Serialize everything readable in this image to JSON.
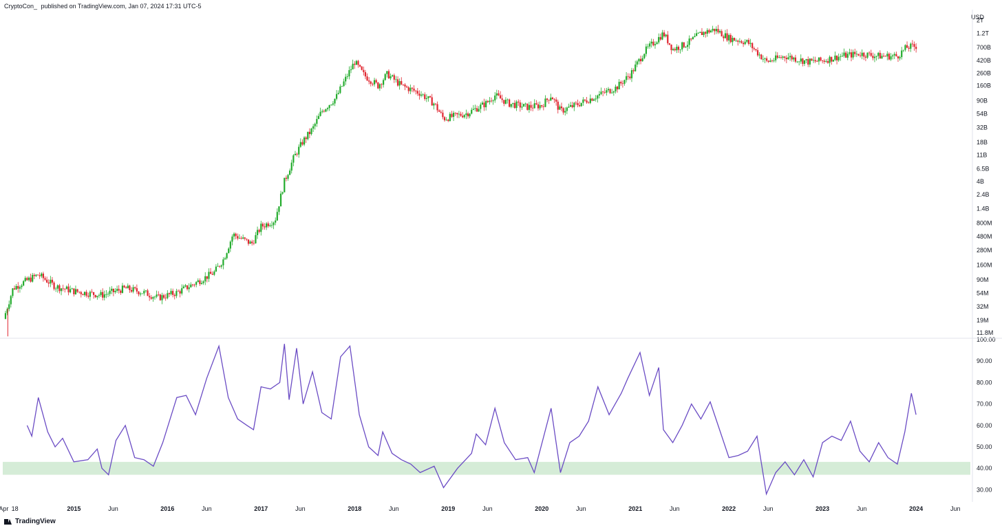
{
  "header": {
    "author": "CryptoCon_",
    "published_text": "published on TradingView.com, Jan 07, 2024 17:31 UTC-5"
  },
  "footer": {
    "brand": "TradingView",
    "logo_icon": "tradingview-logo-icon"
  },
  "colors": {
    "up": "#22ab2c",
    "down": "#e0252f",
    "rsi": "#6a4bc4",
    "band": "#d5ecd7",
    "grid": "#e0e3eb"
  },
  "chart_data": [
    {
      "type": "candlestick",
      "unit": "USD",
      "scale": "log",
      "y_tick_labels": [
        "2T",
        "1.2T",
        "700B",
        "420B",
        "260B",
        "160B",
        "90B",
        "54B",
        "32B",
        "18B",
        "11B",
        "6.5B",
        "4B",
        "2.4B",
        "1.4B",
        "800M",
        "480M",
        "280M",
        "160M",
        "90M",
        "54M",
        "32M",
        "19M",
        "11.8M"
      ],
      "y_tick_values": [
        2000000000000.0,
        1200000000000.0,
        700000000000.0,
        420000000000.0,
        260000000000.0,
        160000000000.0,
        90000000000.0,
        54000000000.0,
        32000000000.0,
        18000000000.0,
        11000000000.0,
        6500000000.0,
        4000000000.0,
        2400000000.0,
        1400000000.0,
        800000000.0,
        480000000.0,
        280000000.0,
        160000000.0,
        90000000.0,
        54000000.0,
        32000000.0,
        19000000.0,
        11800000.0
      ],
      "ylim": [
        10000000.0,
        2300000000000.0
      ],
      "x_ticks": [
        {
          "label": "Apr",
          "t": 2014.25,
          "bold": false
        },
        {
          "label": "18",
          "t": 2014.37,
          "bold": false
        },
        {
          "label": "2015",
          "t": 2015.0,
          "bold": true
        },
        {
          "label": "Jun",
          "t": 2015.42,
          "bold": false
        },
        {
          "label": "2016",
          "t": 2016.0,
          "bold": true
        },
        {
          "label": "Jun",
          "t": 2016.42,
          "bold": false
        },
        {
          "label": "2017",
          "t": 2017.0,
          "bold": true
        },
        {
          "label": "Jun",
          "t": 2017.42,
          "bold": false
        },
        {
          "label": "2018",
          "t": 2018.0,
          "bold": true
        },
        {
          "label": "Jun",
          "t": 2018.42,
          "bold": false
        },
        {
          "label": "2019",
          "t": 2019.0,
          "bold": true
        },
        {
          "label": "Jun",
          "t": 2019.42,
          "bold": false
        },
        {
          "label": "2020",
          "t": 2020.0,
          "bold": true
        },
        {
          "label": "Jun",
          "t": 2020.42,
          "bold": false
        },
        {
          "label": "2021",
          "t": 2021.0,
          "bold": true
        },
        {
          "label": "Jun",
          "t": 2021.42,
          "bold": false
        },
        {
          "label": "2022",
          "t": 2022.0,
          "bold": true
        },
        {
          "label": "Jun",
          "t": 2022.42,
          "bold": false
        },
        {
          "label": "2023",
          "t": 2023.0,
          "bold": true
        },
        {
          "label": "Jun",
          "t": 2023.42,
          "bold": false
        },
        {
          "label": "2024",
          "t": 2024.0,
          "bold": true
        },
        {
          "label": "Jun",
          "t": 2024.42,
          "bold": false
        }
      ],
      "xlim": [
        2014.24,
        2024.58
      ],
      "close_series": [
        {
          "t": 2014.25,
          "v": 20000000.0
        },
        {
          "t": 2014.35,
          "v": 65000000.0
        },
        {
          "t": 2014.45,
          "v": 80000000.0
        },
        {
          "t": 2014.62,
          "v": 110000000.0
        },
        {
          "t": 2014.8,
          "v": 70000000.0
        },
        {
          "t": 2015.0,
          "v": 58000000.0
        },
        {
          "t": 2015.3,
          "v": 50000000.0
        },
        {
          "t": 2015.55,
          "v": 65000000.0
        },
        {
          "t": 2015.75,
          "v": 55000000.0
        },
        {
          "t": 2015.9,
          "v": 45000000.0
        },
        {
          "t": 2016.1,
          "v": 55000000.0
        },
        {
          "t": 2016.3,
          "v": 80000000.0
        },
        {
          "t": 2016.5,
          "v": 120000000.0
        },
        {
          "t": 2016.6,
          "v": 200000000.0
        },
        {
          "t": 2016.7,
          "v": 520000000.0
        },
        {
          "t": 2016.9,
          "v": 360000000.0
        },
        {
          "t": 2017.0,
          "v": 700000000.0
        },
        {
          "t": 2017.15,
          "v": 900000000.0
        },
        {
          "t": 2017.25,
          "v": 4000000000.0
        },
        {
          "t": 2017.35,
          "v": 10000000000.0
        },
        {
          "t": 2017.45,
          "v": 19000000000.0
        },
        {
          "t": 2017.55,
          "v": 30000000000.0
        },
        {
          "t": 2017.65,
          "v": 60000000000.0
        },
        {
          "t": 2017.8,
          "v": 100000000000.0
        },
        {
          "t": 2017.93,
          "v": 250000000000.0
        },
        {
          "t": 2018.0,
          "v": 400000000000.0
        },
        {
          "t": 2018.1,
          "v": 240000000000.0
        },
        {
          "t": 2018.25,
          "v": 160000000000.0
        },
        {
          "t": 2018.35,
          "v": 250000000000.0
        },
        {
          "t": 2018.5,
          "v": 160000000000.0
        },
        {
          "t": 2018.7,
          "v": 120000000000.0
        },
        {
          "t": 2018.85,
          "v": 80000000000.0
        },
        {
          "t": 2018.95,
          "v": 45000000000.0
        },
        {
          "t": 2019.2,
          "v": 55000000000.0
        },
        {
          "t": 2019.4,
          "v": 80000000000.0
        },
        {
          "t": 2019.5,
          "v": 110000000000.0
        },
        {
          "t": 2019.65,
          "v": 80000000000.0
        },
        {
          "t": 2019.85,
          "v": 70000000000.0
        },
        {
          "t": 2020.0,
          "v": 75000000000.0
        },
        {
          "t": 2020.1,
          "v": 110000000000.0
        },
        {
          "t": 2020.2,
          "v": 60000000000.0
        },
        {
          "t": 2020.4,
          "v": 80000000000.0
        },
        {
          "t": 2020.6,
          "v": 110000000000.0
        },
        {
          "t": 2020.8,
          "v": 150000000000.0
        },
        {
          "t": 2020.95,
          "v": 250000000000.0
        },
        {
          "t": 2021.1,
          "v": 600000000000.0
        },
        {
          "t": 2021.3,
          "v": 1200000000000.0
        },
        {
          "t": 2021.4,
          "v": 650000000000.0
        },
        {
          "t": 2021.55,
          "v": 800000000000.0
        },
        {
          "t": 2021.7,
          "v": 1200000000000.0
        },
        {
          "t": 2021.85,
          "v": 1400000000000.0
        },
        {
          "t": 2022.0,
          "v": 1000000000000.0
        },
        {
          "t": 2022.2,
          "v": 850000000000.0
        },
        {
          "t": 2022.4,
          "v": 400000000000.0
        },
        {
          "t": 2022.6,
          "v": 500000000000.0
        },
        {
          "t": 2022.85,
          "v": 400000000000.0
        },
        {
          "t": 2023.0,
          "v": 420000000000.0
        },
        {
          "t": 2023.2,
          "v": 500000000000.0
        },
        {
          "t": 2023.4,
          "v": 550000000000.0
        },
        {
          "t": 2023.6,
          "v": 500000000000.0
        },
        {
          "t": 2023.8,
          "v": 500000000000.0
        },
        {
          "t": 2023.9,
          "v": 700000000000.0
        },
        {
          "t": 2024.0,
          "v": 730000000000.0
        }
      ]
    },
    {
      "type": "line",
      "y_tick_labels": [
        "100.00",
        "90.00",
        "80.00",
        "70.00",
        "60.00",
        "50.00",
        "40.00",
        "30.00"
      ],
      "y_tick_values": [
        100,
        90,
        80,
        70,
        60,
        50,
        40,
        30
      ],
      "ylim": [
        25,
        100
      ],
      "xlim": [
        2014.24,
        2024.58
      ],
      "band": [
        37,
        43
      ],
      "series": [
        {
          "values": [
            {
              "t": 2014.5,
              "v": 60
            },
            {
              "t": 2014.55,
              "v": 55
            },
            {
              "t": 2014.62,
              "v": 73
            },
            {
              "t": 2014.72,
              "v": 57
            },
            {
              "t": 2014.8,
              "v": 50
            },
            {
              "t": 2014.88,
              "v": 54
            },
            {
              "t": 2015.0,
              "v": 43
            },
            {
              "t": 2015.15,
              "v": 44
            },
            {
              "t": 2015.25,
              "v": 49
            },
            {
              "t": 2015.3,
              "v": 40
            },
            {
              "t": 2015.37,
              "v": 37
            },
            {
              "t": 2015.45,
              "v": 53
            },
            {
              "t": 2015.55,
              "v": 60
            },
            {
              "t": 2015.65,
              "v": 45
            },
            {
              "t": 2015.75,
              "v": 44
            },
            {
              "t": 2015.85,
              "v": 41
            },
            {
              "t": 2015.95,
              "v": 52
            },
            {
              "t": 2016.1,
              "v": 73
            },
            {
              "t": 2016.2,
              "v": 74
            },
            {
              "t": 2016.3,
              "v": 65
            },
            {
              "t": 2016.42,
              "v": 82
            },
            {
              "t": 2016.55,
              "v": 97
            },
            {
              "t": 2016.65,
              "v": 73
            },
            {
              "t": 2016.75,
              "v": 63
            },
            {
              "t": 2016.85,
              "v": 60
            },
            {
              "t": 2016.92,
              "v": 58
            },
            {
              "t": 2017.0,
              "v": 78
            },
            {
              "t": 2017.1,
              "v": 77
            },
            {
              "t": 2017.2,
              "v": 80
            },
            {
              "t": 2017.25,
              "v": 98
            },
            {
              "t": 2017.3,
              "v": 72
            },
            {
              "t": 2017.38,
              "v": 96
            },
            {
              "t": 2017.45,
              "v": 70
            },
            {
              "t": 2017.55,
              "v": 85
            },
            {
              "t": 2017.65,
              "v": 66
            },
            {
              "t": 2017.75,
              "v": 63
            },
            {
              "t": 2017.85,
              "v": 92
            },
            {
              "t": 2017.95,
              "v": 97
            },
            {
              "t": 2018.05,
              "v": 65
            },
            {
              "t": 2018.15,
              "v": 50
            },
            {
              "t": 2018.25,
              "v": 46
            },
            {
              "t": 2018.3,
              "v": 57
            },
            {
              "t": 2018.4,
              "v": 47
            },
            {
              "t": 2018.5,
              "v": 44
            },
            {
              "t": 2018.6,
              "v": 42
            },
            {
              "t": 2018.7,
              "v": 38
            },
            {
              "t": 2018.85,
              "v": 41
            },
            {
              "t": 2018.95,
              "v": 31
            },
            {
              "t": 2019.1,
              "v": 40
            },
            {
              "t": 2019.25,
              "v": 47
            },
            {
              "t": 2019.3,
              "v": 56
            },
            {
              "t": 2019.4,
              "v": 51
            },
            {
              "t": 2019.5,
              "v": 68
            },
            {
              "t": 2019.6,
              "v": 52
            },
            {
              "t": 2019.72,
              "v": 44
            },
            {
              "t": 2019.85,
              "v": 45
            },
            {
              "t": 2019.92,
              "v": 38
            },
            {
              "t": 2020.1,
              "v": 68
            },
            {
              "t": 2020.2,
              "v": 38
            },
            {
              "t": 2020.3,
              "v": 52
            },
            {
              "t": 2020.4,
              "v": 55
            },
            {
              "t": 2020.5,
              "v": 62
            },
            {
              "t": 2020.6,
              "v": 78
            },
            {
              "t": 2020.72,
              "v": 65
            },
            {
              "t": 2020.85,
              "v": 75
            },
            {
              "t": 2020.92,
              "v": 82
            },
            {
              "t": 2021.05,
              "v": 94
            },
            {
              "t": 2021.15,
              "v": 74
            },
            {
              "t": 2021.25,
              "v": 87
            },
            {
              "t": 2021.3,
              "v": 58
            },
            {
              "t": 2021.4,
              "v": 52
            },
            {
              "t": 2021.5,
              "v": 60
            },
            {
              "t": 2021.6,
              "v": 70
            },
            {
              "t": 2021.7,
              "v": 63
            },
            {
              "t": 2021.8,
              "v": 71
            },
            {
              "t": 2021.9,
              "v": 58
            },
            {
              "t": 2022.0,
              "v": 45
            },
            {
              "t": 2022.1,
              "v": 46
            },
            {
              "t": 2022.2,
              "v": 48
            },
            {
              "t": 2022.3,
              "v": 55
            },
            {
              "t": 2022.4,
              "v": 28
            },
            {
              "t": 2022.5,
              "v": 38
            },
            {
              "t": 2022.6,
              "v": 43
            },
            {
              "t": 2022.7,
              "v": 37
            },
            {
              "t": 2022.8,
              "v": 44
            },
            {
              "t": 2022.9,
              "v": 36
            },
            {
              "t": 2023.0,
              "v": 52
            },
            {
              "t": 2023.1,
              "v": 55
            },
            {
              "t": 2023.2,
              "v": 53
            },
            {
              "t": 2023.3,
              "v": 62
            },
            {
              "t": 2023.4,
              "v": 48
            },
            {
              "t": 2023.5,
              "v": 43
            },
            {
              "t": 2023.6,
              "v": 52
            },
            {
              "t": 2023.7,
              "v": 45
            },
            {
              "t": 2023.8,
              "v": 42
            },
            {
              "t": 2023.88,
              "v": 57
            },
            {
              "t": 2023.95,
              "v": 75
            },
            {
              "t": 2024.0,
              "v": 65
            }
          ]
        }
      ]
    }
  ]
}
